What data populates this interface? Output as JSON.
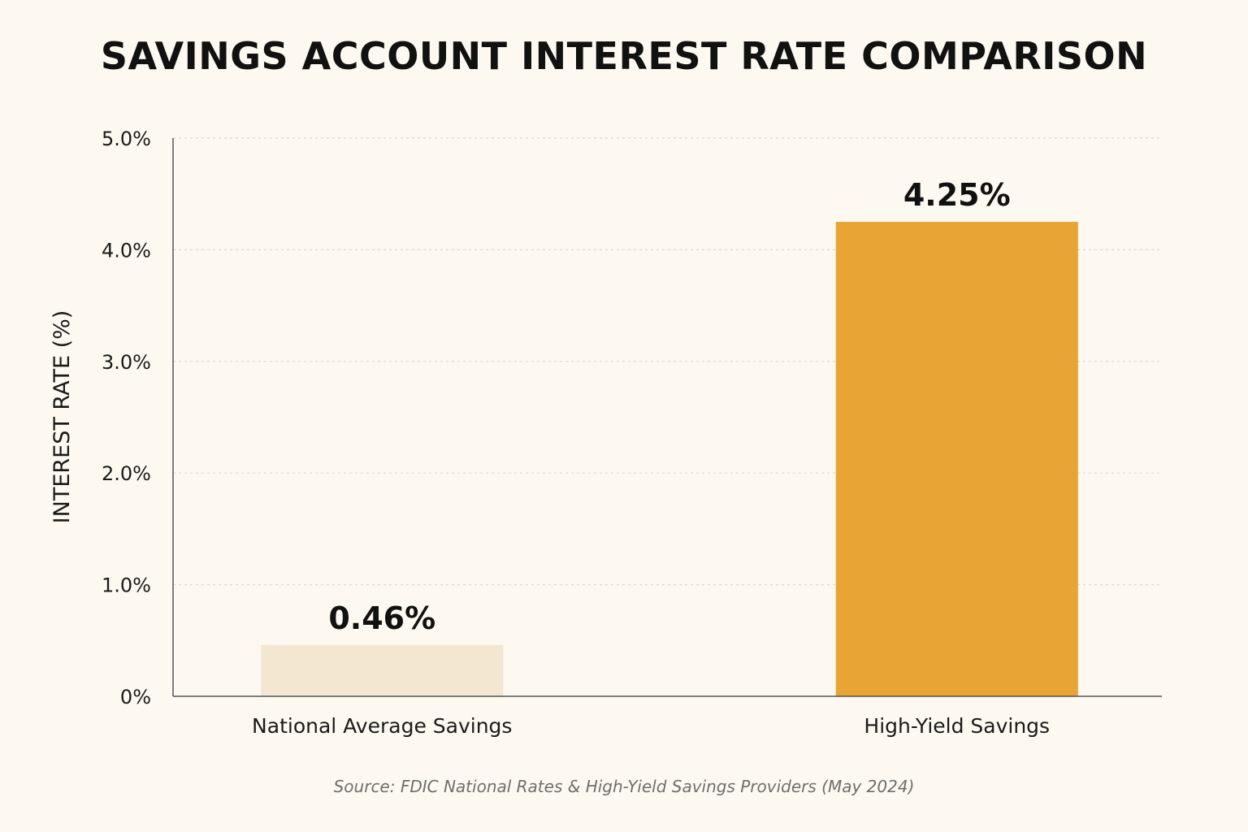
{
  "chart_data": {
    "type": "bar",
    "title": "SAVINGS ACCOUNT INTEREST RATE COMPARISON",
    "ylabel": "INTEREST RATE (%)",
    "xlabel": "",
    "categories": [
      "National Average Savings",
      "High-Yield Savings"
    ],
    "values": [
      0.46,
      4.25
    ],
    "value_labels": [
      "0.46%",
      "4.25%"
    ],
    "bar_colors": [
      "#f3e7d2",
      "#e9a534"
    ],
    "ylim": [
      0,
      5
    ],
    "y_ticks": [
      0,
      1,
      2,
      3,
      4,
      5
    ],
    "y_tick_labels": [
      "0%",
      "1.0%",
      "2.0%",
      "3.0%",
      "4.0%",
      "5.0%"
    ],
    "grid": true,
    "legend": "none",
    "source": "Source: FDIC National Rates & High-Yield Savings Providers (May 2024)"
  }
}
